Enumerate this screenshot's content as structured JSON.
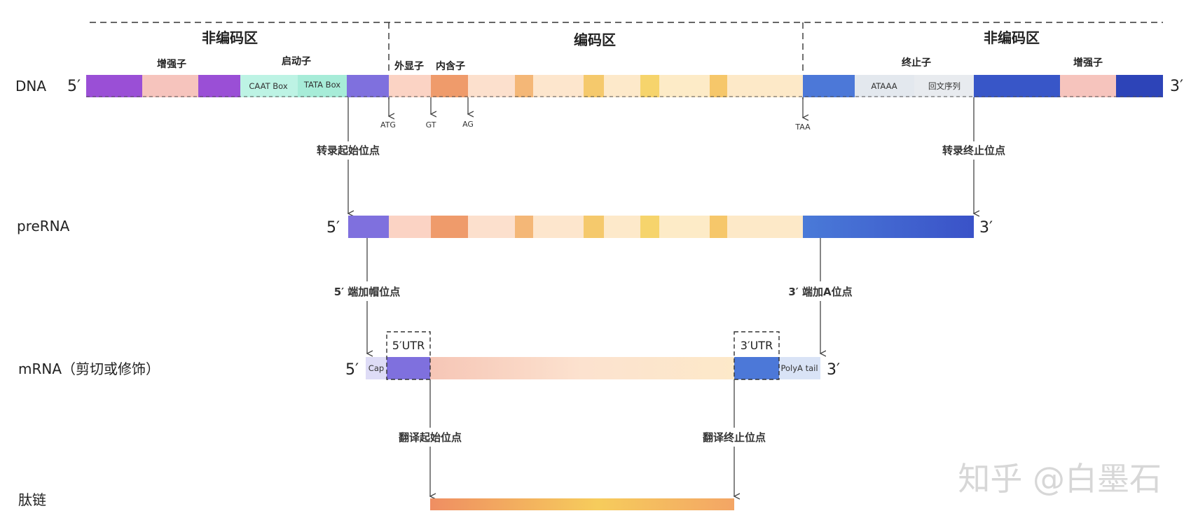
{
  "regions": {
    "left": "非编码区",
    "middle": "编码区",
    "right": "非编码区"
  },
  "rows": {
    "dna": "DNA",
    "prerna": "preRNA",
    "mrna": "mRNA（剪切或修饰）",
    "peptide": "肽链"
  },
  "ends": {
    "five": "5′",
    "three": "3′"
  },
  "features": {
    "enhancer_left": "增强子",
    "promoter": "启动子",
    "caat": "CAAT Box",
    "tata": "TATA Box",
    "exon": "外显子",
    "intron": "内含子",
    "terminator": "终止子",
    "ataaa": "ATAAA",
    "palindrome": "回文序列",
    "enhancer_right": "增强子"
  },
  "codons": {
    "atg": "ATG",
    "gt": "GT",
    "ag": "AG",
    "taa": "TAA"
  },
  "sites": {
    "tx_start": "转录起始位点",
    "tx_end": "转录终止位点",
    "cap_site": "5′ 端加帽位点",
    "polya_site": "3′ 端加A位点",
    "tl_start": "翻译起始位点",
    "tl_end": "翻译终止位点"
  },
  "mrna_parts": {
    "cap": "Cap",
    "utr5": "5′UTR",
    "utr3": "3′UTR",
    "polya": "PolyA tail"
  },
  "watermark": "知乎 @白墨石",
  "colors": {
    "purple": "#9a4fd6",
    "violet": "#7f70de",
    "pink": "#f6c4bd",
    "mint": "#aeeedd",
    "exon_light": "#fbe3cf",
    "intron_orange": "#ef9b6b",
    "gold": "#f6cf6a",
    "blue": "#4c74d8",
    "deep_blue": "#3048bf",
    "grey": "#e4e8ee"
  }
}
